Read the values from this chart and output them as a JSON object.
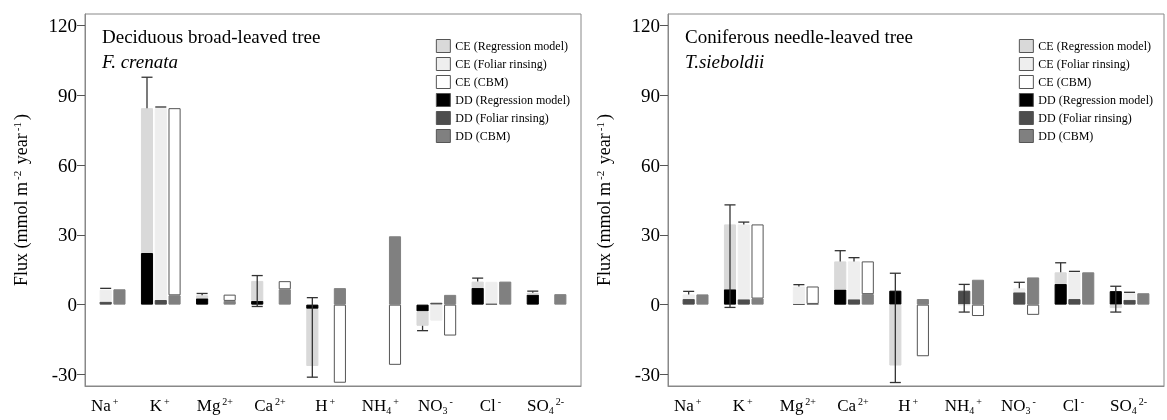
{
  "chart_data": [
    {
      "type": "bar",
      "title": "Deciduous broad-leaved tree",
      "subtitle": "F. crenata",
      "ylabel": "Flux (mmol m$^{-2}$ year$^{-1}$)",
      "stacked": true,
      "legend": "top right",
      "categories": [
        null,
        "Na$^{+}$",
        null,
        null,
        null,
        "K$^{+}$",
        null,
        null,
        null,
        "Mg$^{2+}$",
        null,
        null,
        null,
        "Ca$^{2+}$",
        null,
        null,
        null,
        "H$^{+}$",
        null,
        null,
        null,
        "NH$_{4}$$^{+}$",
        null,
        null,
        null,
        "NO$_{3}$$^{-}$",
        null,
        null,
        null,
        "Cl$^{-}$",
        null,
        null,
        null,
        "SO$_{4}$$^{2-}$",
        null,
        null
      ],
      "ylim": [
        -35,
        125
      ],
      "yticks": [
        -30,
        0,
        30,
        60,
        90,
        120
      ],
      "series": [
        {
          "name": "DD (Regression model)",
          "color": "#000000",
          "values": [
            0,
            null,
            null,
            null,
            22.2,
            null,
            null,
            null,
            2.7,
            null,
            null,
            null,
            1.6,
            null,
            null,
            null,
            -1.8,
            null,
            null,
            null,
            0,
            null,
            null,
            null,
            -2.9,
            null,
            null,
            null,
            7.2,
            null,
            null,
            null,
            4.3,
            null,
            null,
            null
          ]
        },
        {
          "name": "DD (Foliar rinsing)",
          "color": "#4d4d4d",
          "values": [
            null,
            1.3,
            null,
            null,
            null,
            2,
            null,
            null,
            null,
            0,
            null,
            null,
            null,
            0,
            null,
            null,
            null,
            0,
            null,
            null,
            null,
            0,
            null,
            null,
            null,
            0.8,
            null,
            null,
            null,
            0.5,
            null,
            null,
            null,
            0,
            null,
            null
          ]
        },
        {
          "name": "DD (CBM)",
          "color": "#808080",
          "values": [
            null,
            null,
            6.6,
            null,
            null,
            null,
            4,
            null,
            null,
            null,
            1.6,
            null,
            null,
            null,
            6.6,
            null,
            null,
            null,
            7.1,
            null,
            null,
            null,
            29.4,
            null,
            null,
            null,
            4.2,
            null,
            null,
            null,
            9.9,
            null,
            null,
            null,
            4.5,
            null
          ]
        },
        {
          "name": "CE (Regression model)",
          "color": "#d9d9d9",
          "values": [
            null,
            null,
            null,
            null,
            62.3,
            null,
            null,
            null,
            1.3,
            null,
            null,
            null,
            8.6,
            null,
            null,
            null,
            -24.6,
            null,
            null,
            null,
            null,
            null,
            null,
            null,
            -6.2,
            null,
            null,
            null,
            2.7,
            null,
            null,
            null,
            0.8,
            null,
            null,
            null
          ],
          "errors": [
            null,
            null,
            null,
            null,
            [
              84.5,
              97.8
            ],
            null,
            null,
            null,
            [
              4,
              4.8
            ],
            null,
            null,
            null,
            [
              -0.8,
              12.5
            ],
            null,
            null,
            null,
            [
              -31.2,
              3
            ],
            null,
            null,
            null,
            null,
            null,
            null,
            null,
            [
              -11.2,
              -9.1
            ],
            null,
            null,
            null,
            [
              9.9,
              11.4
            ],
            null,
            null,
            null,
            [
              5.1,
              5.8
            ],
            null,
            null,
            null
          ]
        },
        {
          "name": "CE (Foliar rinsing)",
          "color": "#eeeeee",
          "values": [
            null,
            5.1,
            null,
            null,
            null,
            82.5,
            null,
            null,
            null,
            null,
            null,
            null,
            null,
            null,
            null,
            null,
            null,
            null,
            null,
            null,
            null,
            null,
            null,
            null,
            null,
            -6.9,
            null,
            null,
            null,
            9.3,
            null,
            null,
            null,
            null,
            null,
            null
          ],
          "errors": [
            null,
            [
              6.4,
              7
            ],
            null,
            null,
            null,
            [
              84.5,
              85
            ],
            null,
            null,
            null,
            null,
            null,
            null,
            null,
            null,
            null,
            null,
            null,
            null,
            null,
            null,
            null,
            null,
            null,
            null,
            null,
            null,
            null,
            null,
            null,
            null,
            null,
            null,
            null,
            null,
            null,
            null
          ]
        },
        {
          "name": "CE (CBM)",
          "color": "#ffffff",
          "values": [
            null,
            null,
            null,
            null,
            null,
            null,
            80.5,
            null,
            null,
            null,
            2.7,
            null,
            null,
            null,
            3.5,
            null,
            null,
            null,
            -33.6,
            null,
            null,
            null,
            -25.9,
            null,
            null,
            null,
            -13.3,
            null,
            null,
            null,
            null,
            null,
            null,
            null,
            null,
            null
          ]
        }
      ]
    },
    {
      "type": "bar",
      "title": "Coniferous needle-leaved tree",
      "subtitle": "T.sieboldii",
      "ylabel": "Flux (mmol m$^{-2}$ year$^{-1}$)",
      "stacked": true,
      "legend": "top right",
      "categories": [
        null,
        "Na$^{+}$",
        null,
        null,
        null,
        "K$^{+}$",
        null,
        null,
        null,
        "Mg$^{2+}$",
        null,
        null,
        null,
        "Ca$^{2+}$",
        null,
        null,
        null,
        "H$^{+}$",
        null,
        null,
        null,
        "NH$_{4}$$^{+}$",
        null,
        null,
        null,
        "NO$_{3}$$^{-}$",
        null,
        null,
        null,
        "Cl$^{-}$",
        null,
        null,
        null,
        "SO$_{4}$$^{2-}$",
        null,
        null
      ],
      "ylim": [
        -35,
        125
      ],
      "yticks": [
        -30,
        0,
        30,
        60,
        90,
        120
      ],
      "series": [
        {
          "name": "DD (Regression model)",
          "color": "#000000",
          "values": [
            0,
            null,
            null,
            null,
            6.6,
            null,
            null,
            null,
            0,
            null,
            null,
            null,
            6.5,
            null,
            null,
            null,
            6.0,
            null,
            null,
            null,
            0,
            null,
            null,
            null,
            0,
            null,
            null,
            null,
            8.9,
            null,
            null,
            null,
            5.8,
            null,
            null,
            null
          ]
        },
        {
          "name": "DD (Foliar rinsing)",
          "color": "#4d4d4d",
          "values": [
            null,
            2.4,
            null,
            null,
            null,
            2.3,
            null,
            null,
            null,
            0.3,
            null,
            null,
            null,
            2.3,
            null,
            null,
            null,
            0,
            null,
            null,
            null,
            6.0,
            null,
            null,
            null,
            5.3,
            null,
            null,
            null,
            2.4,
            null,
            null,
            null,
            2.1,
            null,
            null
          ]
        },
        {
          "name": "DD (CBM)",
          "color": "#808080",
          "values": [
            null,
            null,
            4.4,
            null,
            null,
            null,
            2.6,
            null,
            null,
            null,
            0.3,
            null,
            null,
            null,
            4.5,
            null,
            null,
            null,
            2.4,
            null,
            null,
            null,
            10.7,
            null,
            null,
            null,
            11.7,
            null,
            null,
            null,
            13.9,
            null,
            null,
            null,
            4.9,
            null
          ]
        },
        {
          "name": "CE (Regression model)",
          "color": "#d9d9d9",
          "values": [
            null,
            null,
            null,
            null,
            27.9,
            null,
            null,
            null,
            null,
            null,
            null,
            null,
            12.1,
            null,
            null,
            null,
            -26.2,
            null,
            null,
            null,
            null,
            null,
            null,
            null,
            null,
            null,
            null,
            null,
            5.0,
            null,
            null,
            null,
            -1.5,
            null,
            null,
            null
          ],
          "errors": [
            null,
            null,
            null,
            null,
            [
              -1.2,
              42.9
            ],
            null,
            null,
            null,
            null,
            null,
            null,
            null,
            [
              18.6,
              23.2
            ],
            null,
            null,
            null,
            [
              -33.5,
              13.5
            ],
            null,
            null,
            null,
            null,
            null,
            null,
            null,
            null,
            null,
            null,
            null,
            [
              13.9,
              18.0
            ],
            null,
            null,
            null,
            [
              -3.2,
              7.9
            ],
            null,
            null,
            null
          ]
        },
        {
          "name": "CE (Foliar rinsing)",
          "color": "#eeeeee",
          "values": [
            null,
            2.0,
            null,
            null,
            null,
            32.2,
            null,
            null,
            null,
            7.5,
            null,
            null,
            null,
            16.3,
            null,
            null,
            null,
            null,
            null,
            null,
            null,
            -0.3,
            null,
            null,
            null,
            1.7,
            null,
            null,
            null,
            11.5,
            null,
            null,
            null,
            2.8,
            null,
            null
          ],
          "errors": [
            null,
            [
              4.4,
              5.7
            ],
            null,
            null,
            null,
            [
              34.5,
              35.5
            ],
            null,
            null,
            null,
            [
              7.8,
              8.6
            ],
            null,
            null,
            null,
            [
              18.6,
              20.2
            ],
            null,
            null,
            null,
            null,
            null,
            null,
            null,
            [
              -3.2,
              8.7
            ],
            null,
            null,
            null,
            [
              7.0,
              9.6
            ],
            null,
            null,
            null,
            [
              13.9,
              14.3
            ],
            null,
            null,
            null,
            [
              4.9,
              5.3
            ],
            null,
            null
          ]
        },
        {
          "name": "CE (CBM)",
          "color": "#ffffff",
          "values": [
            null,
            null,
            null,
            null,
            null,
            null,
            31.9,
            null,
            null,
            null,
            7.5,
            null,
            null,
            null,
            14.1,
            null,
            null,
            null,
            -22.2,
            null,
            null,
            null,
            -4.9,
            null,
            null,
            null,
            -4.4,
            null,
            null,
            null,
            null,
            null,
            null,
            null,
            null,
            null
          ]
        }
      ]
    }
  ]
}
